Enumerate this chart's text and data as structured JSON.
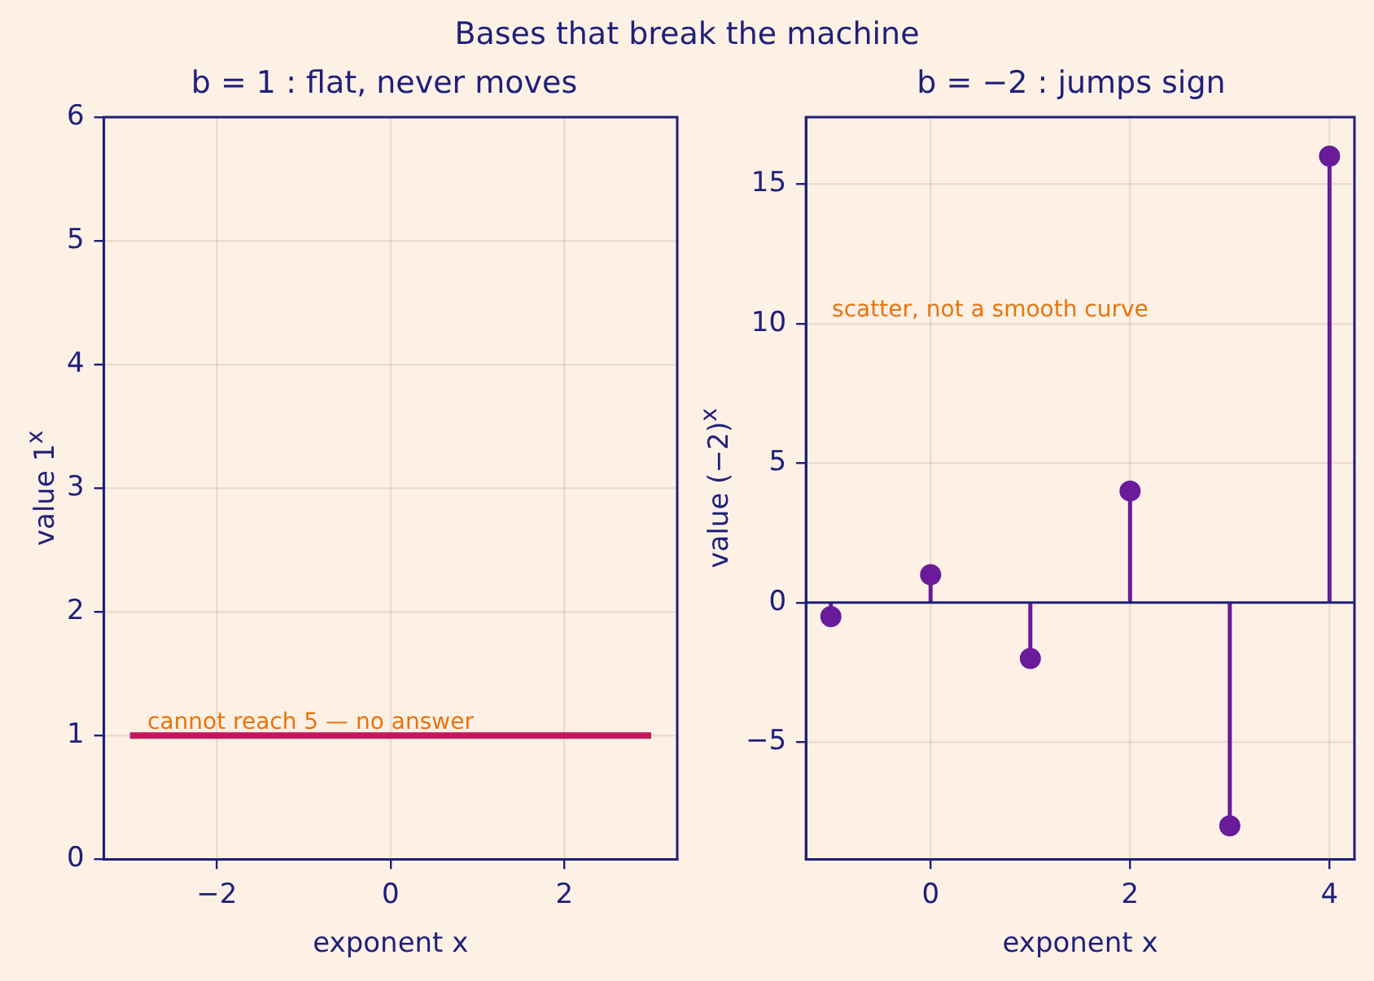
{
  "chart_data": [
    {
      "type": "line",
      "title": "Bases that break the machine",
      "subtitle": "b = 1 : flat, never moves",
      "xlabel": "exponent x",
      "ylabel": "value 1$^{x}$",
      "x": [
        -3,
        3
      ],
      "series": [
        {
          "color": "#c2185b",
          "values": [
            1,
            1
          ]
        }
      ],
      "xlim": [
        -3.3,
        3.3
      ],
      "xticks": [
        -2,
        0,
        2
      ],
      "ylim": [
        0,
        6
      ],
      "yticks": [
        0,
        1,
        2,
        3,
        4,
        5,
        6
      ],
      "grid": true,
      "marker": "none",
      "annotations": [
        {
          "text": "cannot reach 5 — no answer",
          "x": -2.8,
          "y": 1
        }
      ]
    },
    {
      "type": "lollipop",
      "title": "b = −2 : jumps sign",
      "xlabel": "exponent x",
      "ylabel": "value (−2)$^{x}$",
      "x": [
        -1,
        0,
        1,
        2,
        3,
        4
      ],
      "series": [
        {
          "color": "#6a1b9a",
          "values": [
            -0.5,
            1,
            -2,
            4,
            -8,
            16
          ]
        }
      ],
      "xlim": [
        -1.25,
        4.25
      ],
      "xticks": [
        0,
        2,
        4
      ],
      "ylim": [
        -9.2,
        17.4
      ],
      "yticks": [
        -5,
        0,
        5,
        10,
        15
      ],
      "grid": true,
      "marker": "circle",
      "ref_lines": [
        {
          "axis": "y",
          "value": 0,
          "color": "#1f1f7a"
        }
      ],
      "annotations": [
        "scatter, not a smooth curve"
      ]
    }
  ]
}
